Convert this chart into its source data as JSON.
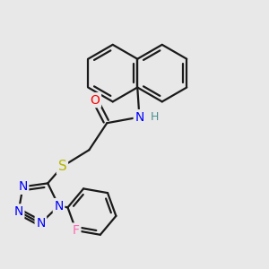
{
  "background_color": "#e8e8e8",
  "bond_color": "#1a1a1a",
  "bond_width": 1.6,
  "atom_colors": {
    "N": "#0000ff",
    "O": "#ff0000",
    "S": "#b8b800",
    "F": "#ff69b4",
    "H": "#4a9090",
    "C": "#1a1a1a"
  },
  "font_size_atoms": 10,
  "font_size_H": 9
}
